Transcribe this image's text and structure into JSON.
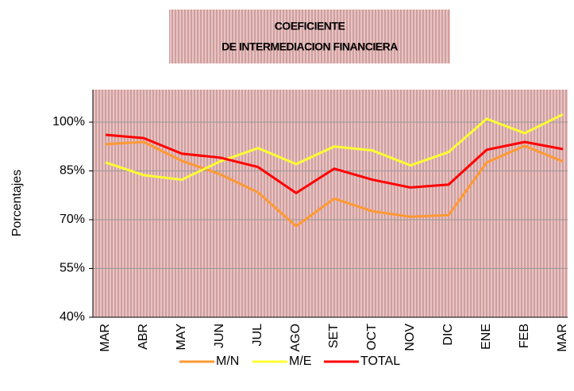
{
  "chart_data": {
    "type": "line",
    "title": [
      "COEFICIENTE",
      "DE INTERMEDIACION FINANCIERA"
    ],
    "y_label": "Porcentajes",
    "categories": [
      "MAR",
      "ABR",
      "MAY",
      "JUN",
      "JUL",
      "AGO",
      "SET",
      "OCT",
      "NOV",
      "DIC",
      "ENE",
      "FEB",
      "MAR"
    ],
    "series": [
      {
        "name": "M/N",
        "color": "#ff9933",
        "values": [
          93.2,
          93.9,
          88.1,
          84.0,
          78.4,
          68.0,
          76.5,
          72.6,
          70.9,
          71.4,
          87.6,
          92.7,
          87.9
        ]
      },
      {
        "name": "M/E",
        "color": "#ffff33",
        "values": [
          87.6,
          83.7,
          82.3,
          87.9,
          92.0,
          87.1,
          92.5,
          91.3,
          86.7,
          90.8,
          101.0,
          96.6,
          102.4
        ]
      },
      {
        "name": "TOTAL",
        "color": "#ff0000",
        "values": [
          96.1,
          95.1,
          90.3,
          89.1,
          86.2,
          78.2,
          85.7,
          82.3,
          79.9,
          80.8,
          91.5,
          93.9,
          91.7
        ]
      }
    ],
    "ylim": [
      40,
      110
    ],
    "yticks": [
      {
        "value": 40,
        "label": "40%"
      },
      {
        "value": 55,
        "label": "55%"
      },
      {
        "value": 70,
        "label": "70%"
      },
      {
        "value": 85,
        "label": "85%"
      },
      {
        "value": 100,
        "label": "100%"
      }
    ],
    "grid": true,
    "legend": "bottom"
  }
}
